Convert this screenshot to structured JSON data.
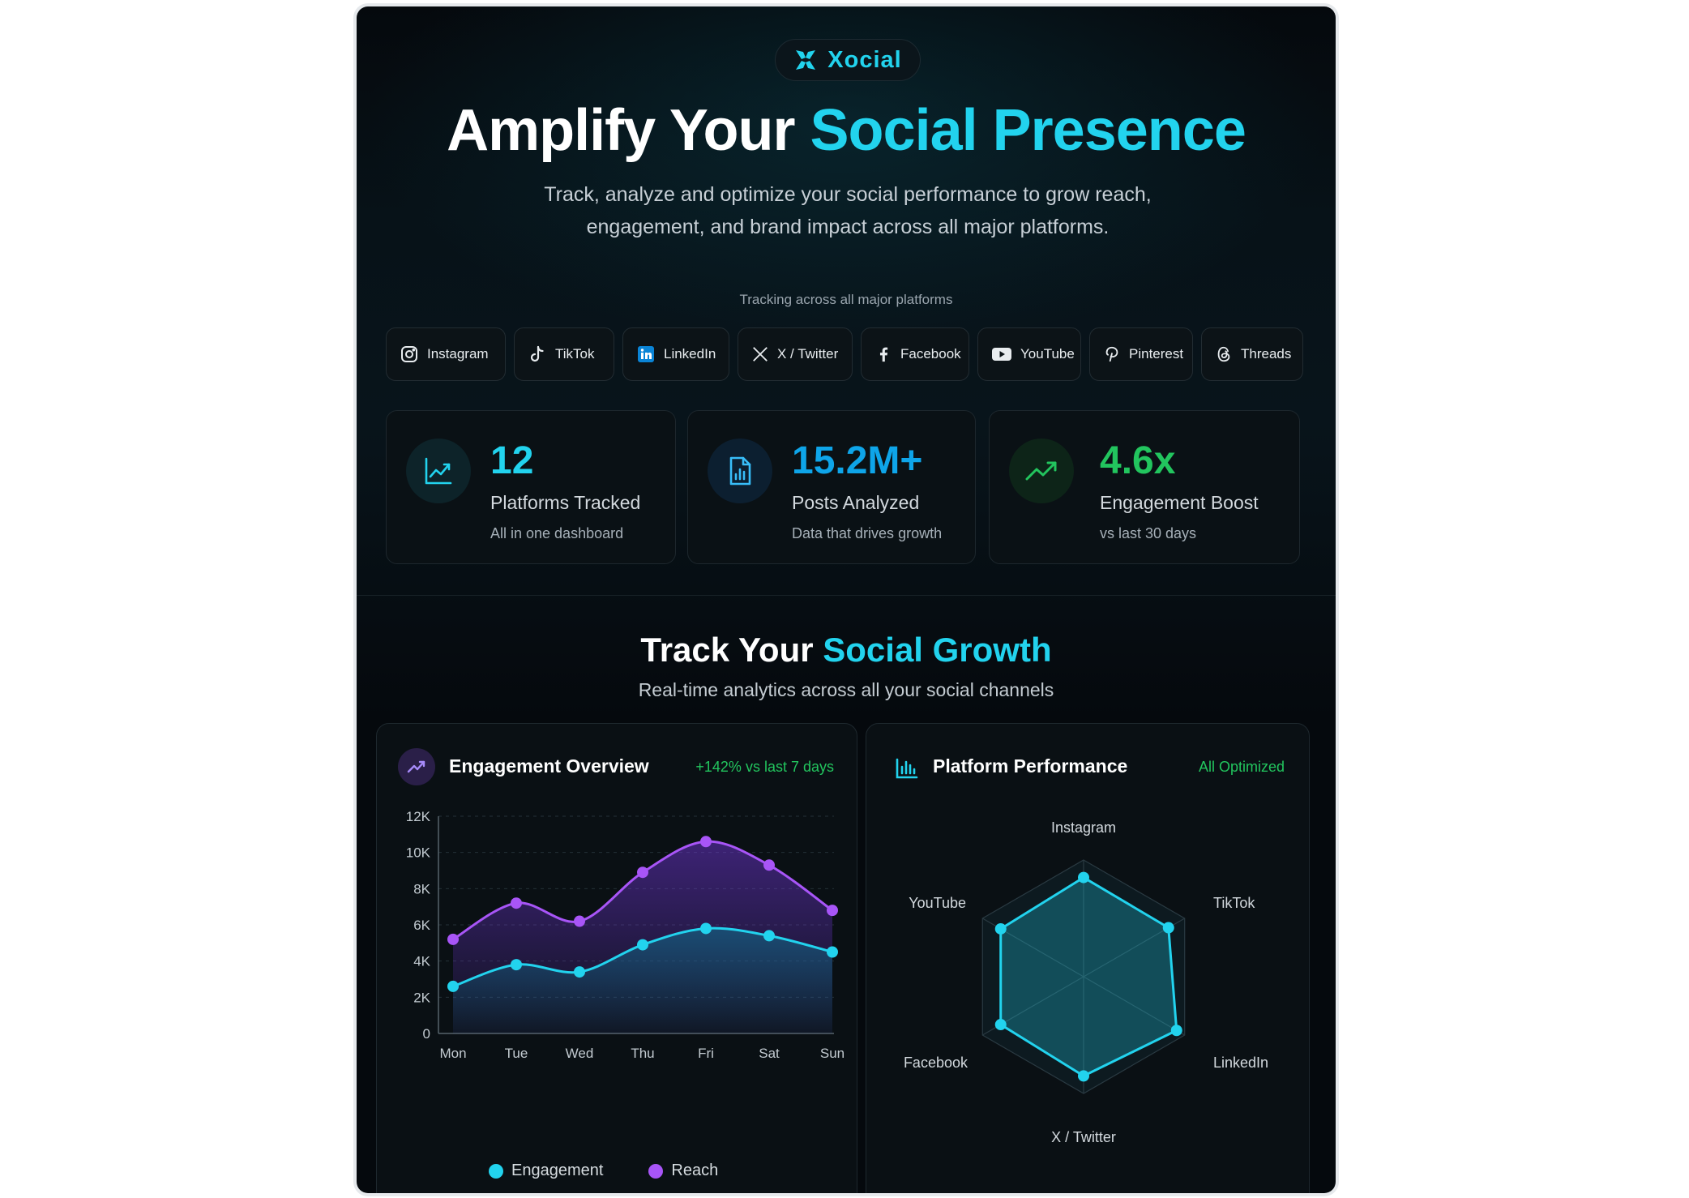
{
  "brand": {
    "name": "Xocial",
    "icon": "x-brand-icon"
  },
  "hero": {
    "title_part1": "Amplify Your ",
    "title_part2": "Social Presence",
    "subtitle_line1": "Track, analyze and optimize your social performance to grow reach,",
    "subtitle_line2": "engagement, and brand impact across all major platforms."
  },
  "platforms": {
    "label": "Tracking across all major platforms",
    "items": [
      {
        "name": "Instagram",
        "icon": "instagram-icon"
      },
      {
        "name": "TikTok",
        "icon": "tiktok-icon"
      },
      {
        "name": "LinkedIn",
        "icon": "linkedin-icon"
      },
      {
        "name": "X / Twitter",
        "icon": "x-icon"
      },
      {
        "name": "Facebook",
        "icon": "facebook-icon"
      },
      {
        "name": "YouTube",
        "icon": "youtube-icon"
      },
      {
        "name": "Pinterest",
        "icon": "pinterest-icon"
      },
      {
        "name": "Threads",
        "icon": "threads-icon"
      }
    ]
  },
  "stats": [
    {
      "value": "12",
      "label": "Platforms Tracked",
      "sub": "All in one dashboard",
      "color": "#22d3ee",
      "icon": "line-chart-icon"
    },
    {
      "value": "15.2M+",
      "label": "Posts Analyzed",
      "sub": "Data that drives growth",
      "color": "#0ea5e9",
      "icon": "document-chart-icon"
    },
    {
      "value": "4.6x",
      "label": "Engagement Boost",
      "sub": "vs last 30 days",
      "color": "#22c55e",
      "icon": "trending-up-icon"
    }
  ],
  "growth": {
    "title_part1": "Track Your ",
    "title_part2": "Social Growth",
    "subtitle": "Real-time analytics across all your social channels"
  },
  "engagement_card": {
    "title": "Engagement Overview",
    "badge": "+142% vs last 7 days",
    "icon": "trending-up-icon"
  },
  "performance_card": {
    "title": "Platform Performance",
    "badge": "All Optimized",
    "icon": "bar-chart-icon"
  },
  "colors": {
    "accent": "#22d3ee",
    "reach": "#a855f7",
    "positive": "#22c55e",
    "background": "#05090d"
  },
  "chart_data": [
    {
      "type": "area",
      "title": "Engagement Overview",
      "categories": [
        "Mon",
        "Tue",
        "Wed",
        "Thu",
        "Fri",
        "Sat",
        "Sun"
      ],
      "y_ticks": [
        "0",
        "2K",
        "4K",
        "6K",
        "8K",
        "10K",
        "12K"
      ],
      "ylim": [
        0,
        12000
      ],
      "grid": true,
      "legend": "bottom",
      "series": [
        {
          "name": "Engagement",
          "color": "#22d3ee",
          "values": [
            2600,
            3800,
            3400,
            4900,
            5800,
            5400,
            4500
          ]
        },
        {
          "name": "Reach",
          "color": "#a855f7",
          "values": [
            5200,
            7200,
            6200,
            8900,
            10600,
            9300,
            6800
          ]
        }
      ]
    },
    {
      "type": "radar",
      "title": "Platform Performance",
      "categories": [
        "Instagram",
        "TikTok",
        "LinkedIn",
        "X / Twitter",
        "Facebook",
        "YouTube"
      ],
      "rmax": 100,
      "values": [
        85,
        84,
        92,
        85,
        82,
        82
      ],
      "color": "#22d3ee"
    }
  ]
}
